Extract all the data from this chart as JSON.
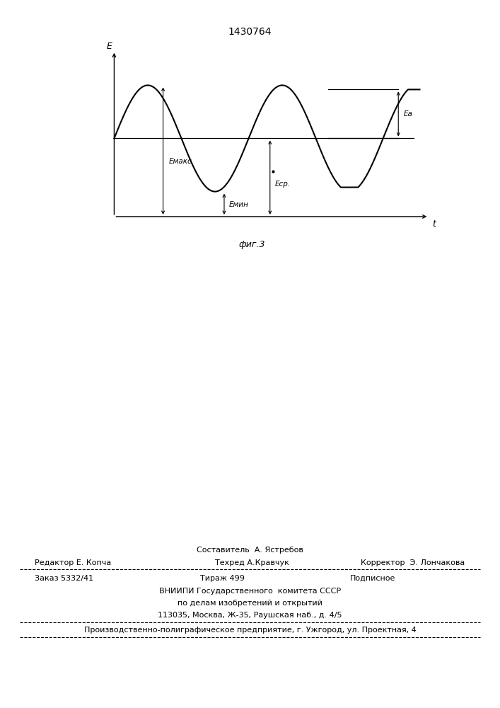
{
  "title": "1430764",
  "title_fontsize": 10,
  "fig_caption": "фиг.3",
  "axis_label_E": "E",
  "axis_label_t": "t",
  "label_Emaks": "Eмакс",
  "label_Emin": "Eмин",
  "label_Esr": "Eср.",
  "label_Ea": "Eа",
  "line1_text": "Составитель  А. Ястребов",
  "line2_left": "Редактор Е. Копча",
  "line2_mid": "Техред А.Кравчук",
  "line2_right": "Корректор  Э. Лончакова",
  "line3_left": "Заказ 5332/41",
  "line3_mid": "Тираж 499",
  "line3_right": "Подписное",
  "line4": "ВНИИПИ Государственного  комитета СССР",
  "line5": "по делам изобретений и открытий",
  "line6": "113035, Москва, Ж-35, Раушская наб., д. 4/5",
  "line7": "Производственно-полиграфическое предприятие, г. Ужгород, ул. Проектная, 4",
  "bg_color": "#ffffff",
  "text_color": "#000000"
}
